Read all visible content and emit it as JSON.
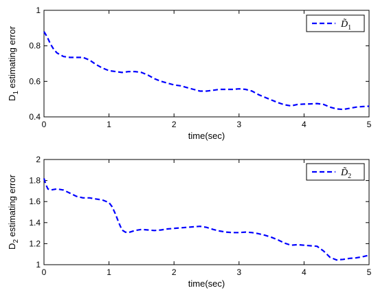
{
  "chart_data": [
    {
      "type": "line",
      "xlabel": "time(sec)",
      "ylabel": "D",
      "ylabel_sub": "1",
      "ylabel_rest": " estimating error",
      "xlim": [
        0,
        5
      ],
      "ylim": [
        0.4,
        1
      ],
      "xticks": [
        0,
        1,
        2,
        3,
        4,
        5
      ],
      "yticks": [
        0.4,
        0.6,
        0.8,
        1
      ],
      "xtick_labels": [
        "0",
        "1",
        "2",
        "3",
        "4",
        "5"
      ],
      "ytick_labels": [
        "0.4",
        "0.6",
        "0.8",
        "1"
      ],
      "legend": {
        "placement": "top-right",
        "symbol": "D̃",
        "sub": "1"
      },
      "series": [
        {
          "name": "D̃1",
          "color": "#0000ff",
          "style": "dashed",
          "x": [
            0,
            0.05,
            0.1,
            0.15,
            0.2,
            0.3,
            0.4,
            0.5,
            0.6,
            0.7,
            0.8,
            0.9,
            1.0,
            1.1,
            1.2,
            1.3,
            1.4,
            1.5,
            1.6,
            1.7,
            1.8,
            1.9,
            2.0,
            2.1,
            2.2,
            2.3,
            2.4,
            2.5,
            2.6,
            2.7,
            2.8,
            2.9,
            3.0,
            3.1,
            3.2,
            3.3,
            3.4,
            3.5,
            3.6,
            3.7,
            3.8,
            3.9,
            4.0,
            4.1,
            4.2,
            4.3,
            4.4,
            4.5,
            4.6,
            4.7,
            4.8,
            4.9,
            5.0
          ],
          "y": [
            0.88,
            0.85,
            0.81,
            0.78,
            0.76,
            0.74,
            0.735,
            0.735,
            0.735,
            0.72,
            0.695,
            0.675,
            0.66,
            0.655,
            0.65,
            0.655,
            0.655,
            0.65,
            0.635,
            0.615,
            0.6,
            0.59,
            0.58,
            0.575,
            0.565,
            0.555,
            0.545,
            0.545,
            0.55,
            0.555,
            0.555,
            0.555,
            0.558,
            0.555,
            0.545,
            0.525,
            0.51,
            0.495,
            0.48,
            0.468,
            0.462,
            0.47,
            0.472,
            0.473,
            0.475,
            0.47,
            0.455,
            0.445,
            0.442,
            0.448,
            0.455,
            0.458,
            0.46
          ]
        }
      ]
    },
    {
      "type": "line",
      "xlabel": "time(sec)",
      "ylabel": "D",
      "ylabel_sub": "2",
      "ylabel_rest": " estimating error",
      "xlim": [
        0,
        5
      ],
      "ylim": [
        1,
        2
      ],
      "xticks": [
        0,
        1,
        2,
        3,
        4,
        5
      ],
      "yticks": [
        1,
        1.2,
        1.4,
        1.6,
        1.8,
        2
      ],
      "xtick_labels": [
        "0",
        "1",
        "2",
        "3",
        "4",
        "5"
      ],
      "ytick_labels": [
        "1",
        "1.2",
        "1.4",
        "1.6",
        "1.8",
        "2"
      ],
      "legend": {
        "placement": "top-right",
        "symbol": "D̃",
        "sub": "2"
      },
      "series": [
        {
          "name": "D̃2",
          "color": "#0000ff",
          "style": "dashed",
          "x": [
            0,
            0.03,
            0.06,
            0.1,
            0.2,
            0.3,
            0.4,
            0.5,
            0.6,
            0.7,
            0.8,
            0.9,
            1.0,
            1.05,
            1.1,
            1.15,
            1.2,
            1.25,
            1.3,
            1.4,
            1.5,
            1.6,
            1.7,
            1.8,
            1.9,
            2.0,
            2.1,
            2.2,
            2.3,
            2.4,
            2.5,
            2.6,
            2.7,
            2.8,
            2.9,
            3.0,
            3.1,
            3.2,
            3.3,
            3.4,
            3.5,
            3.6,
            3.7,
            3.8,
            3.9,
            4.0,
            4.1,
            4.2,
            4.3,
            4.4,
            4.5,
            4.6,
            4.7,
            4.8,
            4.9,
            5.0
          ],
          "y": [
            1.82,
            1.76,
            1.72,
            1.71,
            1.72,
            1.71,
            1.68,
            1.65,
            1.635,
            1.635,
            1.625,
            1.615,
            1.59,
            1.55,
            1.48,
            1.4,
            1.33,
            1.31,
            1.305,
            1.325,
            1.335,
            1.33,
            1.325,
            1.33,
            1.34,
            1.345,
            1.35,
            1.355,
            1.36,
            1.365,
            1.355,
            1.335,
            1.32,
            1.31,
            1.305,
            1.305,
            1.31,
            1.305,
            1.295,
            1.28,
            1.26,
            1.235,
            1.205,
            1.185,
            1.19,
            1.185,
            1.18,
            1.175,
            1.13,
            1.07,
            1.045,
            1.05,
            1.06,
            1.065,
            1.075,
            1.09
          ]
        }
      ]
    }
  ]
}
